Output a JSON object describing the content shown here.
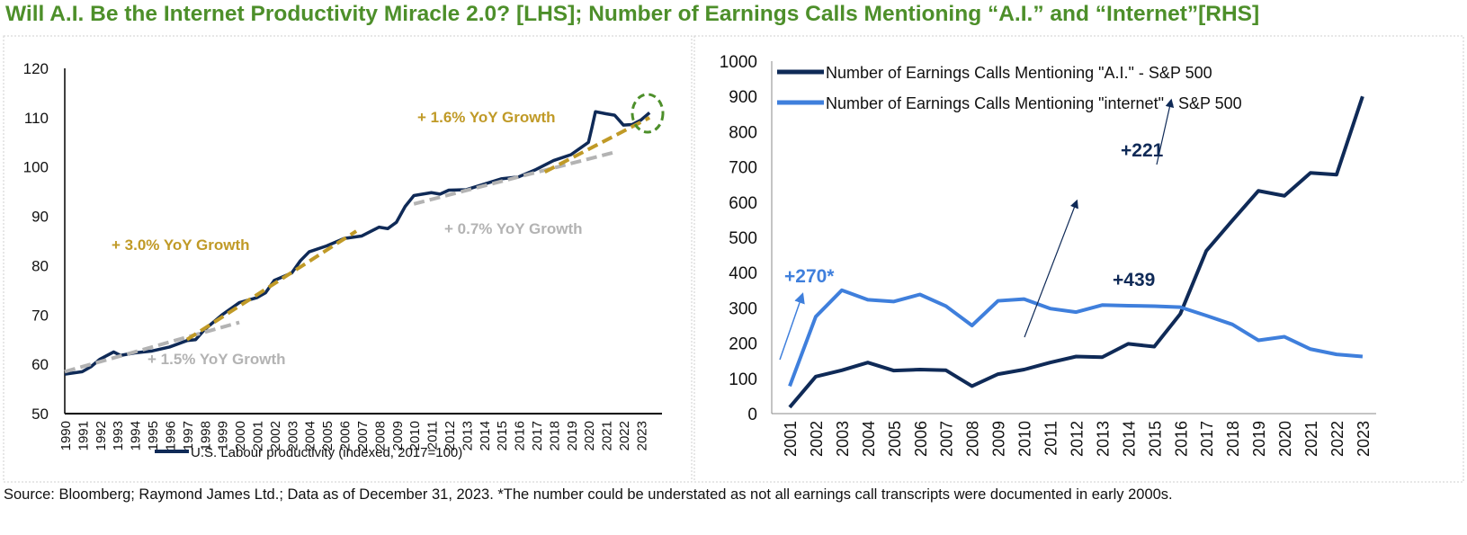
{
  "title": "Will A.I. Be the Internet Productivity Miracle 2.0? [LHS]; Number of Earnings Calls Mentioning “A.I.” and “Internet”[RHS]",
  "source": "Source: Bloomberg; Raymond James Ltd.; Data as of December 31, 2023. *The number could be understated as not all earnings call transcripts were documented in early 2000s.",
  "colors": {
    "title": "#4d8f2a",
    "navy": "#0f2a57",
    "blue": "#3f7fdc",
    "gold": "#c09a27",
    "gray": "#b3b3b3",
    "circle": "#4d8f2a"
  },
  "chart_data": [
    {
      "type": "line",
      "ylim": [
        50,
        120
      ],
      "yticks": [
        50,
        60,
        70,
        80,
        90,
        100,
        110,
        120
      ],
      "xticks": [
        "1990",
        "1991",
        "1992",
        "1993",
        "1994",
        "1995",
        "1996",
        "1997",
        "1998",
        "1999",
        "2000",
        "2001",
        "2002",
        "2003",
        "2004",
        "2005",
        "2006",
        "2007",
        "2008",
        "2009",
        "2010",
        "2011",
        "2012",
        "2013",
        "2014",
        "2015",
        "2016",
        "2017",
        "2018",
        "2019",
        "2020",
        "2021",
        "2022",
        "2023"
      ],
      "series": [
        {
          "name": "U.S. Labour productivity (indexed, 2017=100)",
          "color": "#0f2a57",
          "x": [
            1990,
            1991,
            1991.5,
            1992,
            1992.8,
            1993.2,
            1994,
            1995,
            1996,
            1997,
            1997.5,
            1998,
            1999,
            2000,
            2001,
            2001.5,
            2002,
            2003,
            2003.5,
            2004,
            2005,
            2006,
            2007,
            2008,
            2008.5,
            2009,
            2009.5,
            2010,
            2011,
            2011.5,
            2012,
            2013,
            2014,
            2015,
            2016,
            2017,
            2018,
            2019,
            2020,
            2020.2,
            2020.4,
            2021,
            2021.5,
            2022,
            2022.5,
            2023,
            2023.5
          ],
          "y": [
            58,
            58.5,
            59.5,
            61,
            62.5,
            61.8,
            62.3,
            62.7,
            63.5,
            64.8,
            65,
            67,
            70,
            72.5,
            73.5,
            74.5,
            77,
            78.5,
            81,
            82.8,
            84,
            85.5,
            86,
            87.8,
            87.5,
            88.8,
            92,
            94.2,
            94.8,
            94.5,
            95.3,
            95.4,
            96.5,
            97.6,
            98,
            99.5,
            101.3,
            102.5,
            105,
            108,
            111.2,
            110.8,
            110.5,
            108.5,
            108.6,
            109.5,
            111
          ]
        }
      ],
      "trendlines": [
        {
          "label": "+ 1.5% YoY Growth",
          "color": "#b3b3b3",
          "x": [
            1990,
            2000
          ],
          "y": [
            58.5,
            68.5
          ]
        },
        {
          "label": "+ 3.0% YoY Growth",
          "color": "#c09a27",
          "x": [
            1997,
            2006.7
          ],
          "y": [
            65,
            87
          ]
        },
        {
          "label": "+ 0.7% YoY Growth",
          "color": "#b3b3b3",
          "x": [
            2010,
            2021.5
          ],
          "y": [
            92.5,
            103
          ]
        },
        {
          "label": "+ 1.6% YoY Growth",
          "color": "#c09a27",
          "x": [
            2017.5,
            2023.5
          ],
          "y": [
            99,
            110
          ]
        }
      ],
      "legend": "bottom"
    },
    {
      "type": "line",
      "ylim": [
        0,
        1000
      ],
      "yticks": [
        0,
        100,
        200,
        300,
        400,
        500,
        600,
        700,
        800,
        900,
        1000
      ],
      "categories": [
        "2001",
        "2002",
        "2003",
        "2004",
        "2005",
        "2006",
        "2007",
        "2008",
        "2009",
        "2010",
        "2011",
        "2012",
        "2013",
        "2014",
        "2015",
        "2016",
        "2017",
        "2018",
        "2019",
        "2020",
        "2021",
        "2022",
        "2023"
      ],
      "series": [
        {
          "name": "Number of Earnings Calls Mentioning \"A.I.\" - S&P 500",
          "color": "#0f2a57",
          "values": [
            18,
            105,
            123,
            145,
            122,
            125,
            123,
            78,
            112,
            125,
            145,
            162,
            160,
            198,
            190,
            283,
            462,
            548,
            632,
            618,
            683,
            678,
            900
          ]
        },
        {
          "name": "Number of Earnings Calls Mentioning \"internet\" - S&P 500",
          "color": "#3f7fdc",
          "values": [
            78,
            275,
            350,
            323,
            318,
            338,
            305,
            250,
            320,
            325,
            298,
            288,
            308,
            306,
            305,
            302,
            278,
            253,
            208,
            218,
            183,
            168,
            162
          ]
        }
      ],
      "annotations": [
        {
          "text": "+270*",
          "color": "#3f7fdc"
        },
        {
          "text": "+439",
          "color": "#0f2a57"
        },
        {
          "text": "+221",
          "color": "#0f2a57"
        }
      ],
      "legend": "top-left"
    }
  ]
}
